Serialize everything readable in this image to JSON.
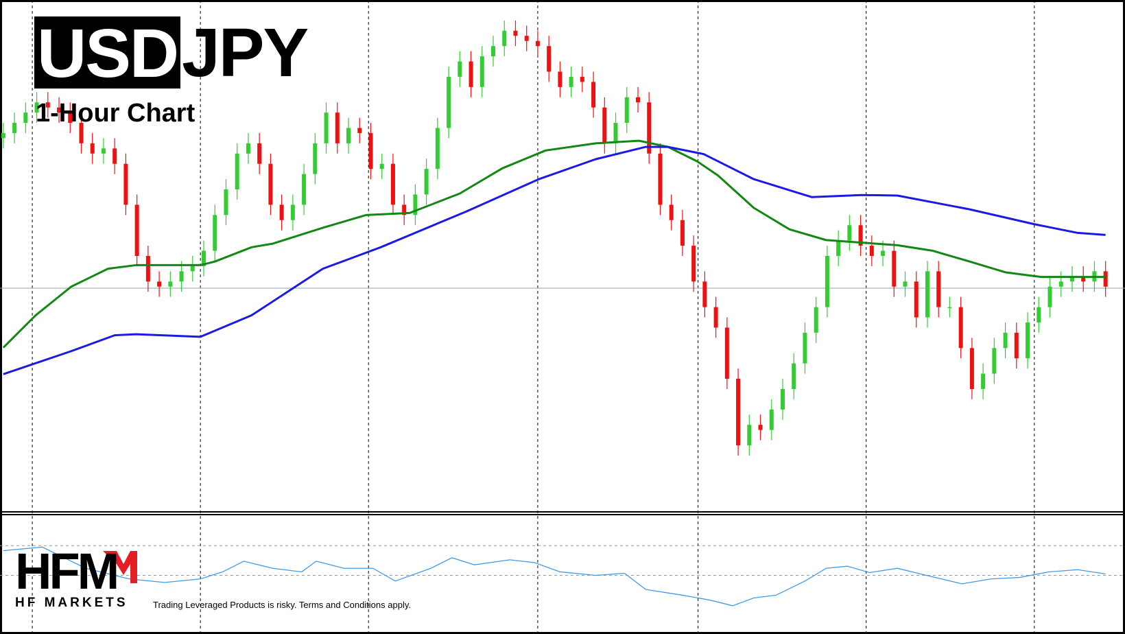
{
  "header": {
    "symbol_highlight": "USD",
    "symbol_rest": "JPY",
    "subtitle": "1-Hour Chart"
  },
  "logo": {
    "mark": "HFM",
    "name": "HF MARKETS"
  },
  "disclaimer": "Trading Leveraged Products is risky. Terms and Conditions apply.",
  "chart_data": {
    "type": "candlestick",
    "xlim": [
      -0.3,
      100.5
    ],
    "ylim": [
      0,
      100
    ],
    "up_color": "#33cc33",
    "down_color": "#ee1111",
    "xticks": [
      2.6,
      17.7,
      32.8,
      48,
      62.4,
      77.5,
      92.6
    ],
    "grid": true,
    "hline": 43.7,
    "open": [
      73,
      74,
      76,
      78,
      80,
      79,
      78,
      76,
      72,
      70,
      71,
      68,
      60,
      50,
      45,
      44,
      45,
      47,
      48,
      51,
      58,
      63,
      70,
      72,
      68,
      60,
      57,
      60,
      66,
      72,
      78,
      72,
      75,
      74,
      67,
      68,
      60,
      58,
      62,
      67,
      75,
      85,
      88,
      83,
      89,
      91,
      94,
      93,
      92,
      91,
      86,
      83,
      85,
      84,
      79,
      72,
      76,
      81,
      80,
      70,
      60,
      57,
      52,
      45,
      40,
      36,
      26,
      13,
      17,
      16,
      20,
      24,
      29,
      35,
      40,
      50,
      53,
      56,
      52,
      50,
      51,
      44,
      45,
      38,
      47,
      40,
      40,
      32,
      24,
      27,
      32,
      35,
      30,
      37,
      40,
      44,
      45,
      46,
      45,
      47
    ],
    "high": [
      76,
      78,
      80,
      82,
      82,
      81,
      80,
      78,
      74,
      73,
      73,
      70,
      62,
      52,
      47,
      47,
      49,
      50,
      53,
      60,
      65,
      72,
      74,
      74,
      70,
      62,
      62,
      68,
      74,
      80,
      80,
      77,
      77,
      76,
      70,
      70,
      62,
      64,
      69,
      77,
      87,
      90,
      90,
      91,
      93,
      96,
      96,
      95,
      94,
      93,
      88,
      87,
      87,
      86,
      81,
      78,
      83,
      83,
      82,
      72,
      62,
      59,
      54,
      47,
      42,
      38,
      28,
      19,
      19,
      22,
      26,
      31,
      37,
      42,
      52,
      55,
      58,
      58,
      54,
      53,
      53,
      47,
      47,
      49,
      49,
      42,
      42,
      34,
      29,
      34,
      37,
      37,
      39,
      42,
      46,
      47,
      48,
      48,
      49,
      49
    ],
    "low": [
      71,
      72,
      74,
      76,
      77,
      76,
      74,
      70,
      68,
      68,
      66,
      58,
      48,
      43,
      42,
      42,
      43,
      45,
      46,
      49,
      56,
      61,
      68,
      66,
      58,
      55,
      55,
      58,
      64,
      70,
      70,
      70,
      72,
      65,
      65,
      58,
      56,
      56,
      60,
      65,
      73,
      83,
      81,
      81,
      87,
      89,
      91,
      90,
      89,
      84,
      81,
      81,
      82,
      77,
      70,
      70,
      74,
      78,
      68,
      58,
      55,
      50,
      43,
      38,
      34,
      24,
      11,
      11,
      14,
      14,
      18,
      22,
      27,
      33,
      38,
      48,
      51,
      50,
      48,
      48,
      42,
      42,
      36,
      36,
      38,
      38,
      30,
      22,
      22,
      25,
      30,
      28,
      28,
      35,
      38,
      42,
      43,
      43,
      43,
      42
    ],
    "close": [
      74,
      76,
      78,
      80,
      79,
      78,
      76,
      72,
      70,
      71,
      68,
      60,
      50,
      45,
      44,
      45,
      47,
      48,
      51,
      58,
      63,
      70,
      72,
      68,
      60,
      57,
      60,
      66,
      72,
      78,
      72,
      75,
      74,
      67,
      68,
      60,
      58,
      62,
      67,
      75,
      85,
      88,
      83,
      89,
      91,
      94,
      93,
      92,
      91,
      86,
      83,
      85,
      84,
      79,
      72,
      76,
      81,
      80,
      70,
      60,
      57,
      52,
      45,
      40,
      36,
      26,
      13,
      17,
      16,
      20,
      24,
      29,
      35,
      40,
      50,
      53,
      56,
      52,
      50,
      51,
      44,
      45,
      38,
      47,
      40,
      40,
      32,
      24,
      27,
      32,
      35,
      30,
      37,
      40,
      44,
      45,
      46,
      45,
      47,
      44
    ],
    "lines": [
      {
        "color": "#118811",
        "x": [
          0,
          2.9,
          6.1,
          9.4,
          11.9,
          17.7,
          19,
          22.3,
          24.2,
          28.7,
          32.6,
          36.5,
          41,
          44.8,
          48.7,
          53.2,
          57.1,
          59.7,
          62.3,
          64.2,
          67.4,
          70.6,
          73.9,
          75.8,
          80.3,
          83.5,
          86.8,
          90,
          93.2,
          99
        ],
        "values": [
          32.1,
          38.4,
          44,
          47.5,
          48.2,
          48.2,
          48.9,
          51.7,
          52.4,
          55.5,
          58,
          58.4,
          62.2,
          67.1,
          70.6,
          72,
          72.5,
          71.3,
          68.5,
          65.7,
          59.4,
          55.2,
          53.1,
          52.8,
          52.1,
          51,
          48.9,
          46.8,
          45.9,
          45.9
        ]
      },
      {
        "color": "#1a1ae6",
        "x": [
          0,
          6.1,
          10,
          11.9,
          17.7,
          22.3,
          28.7,
          33.9,
          41.6,
          48.1,
          53.2,
          57.7,
          59.7,
          62.9,
          67.4,
          72.6,
          77.1,
          80.3,
          86.8,
          92.6,
          96.5,
          99
        ],
        "values": [
          26.9,
          31.4,
          34.5,
          34.7,
          34.2,
          38.4,
          47.5,
          51.7,
          58.7,
          65,
          68.9,
          71.3,
          71.3,
          69.9,
          65,
          61.5,
          61.9,
          61.8,
          59.1,
          56.2,
          54.5,
          54.1
        ]
      }
    ],
    "indicator": {
      "ylim": [
        0,
        100
      ],
      "levels": [
        74.4,
        48.8
      ],
      "color": "#3d9be9",
      "x": [
        0,
        3.5,
        7.4,
        11.3,
        14.5,
        17.7,
        19.7,
        21.6,
        24.2,
        26.8,
        28.1,
        30.6,
        33.2,
        35.2,
        38.4,
        40.3,
        42.3,
        45.5,
        47.7,
        50,
        53.2,
        55.8,
        57.7,
        61,
        63.5,
        65.5,
        67.4,
        69.4,
        72,
        73.9,
        75.8,
        77.8,
        80.3,
        82.9,
        86.1,
        88.7,
        91.3,
        93.9,
        96.5,
        99
      ],
      "values": [
        70.1,
        73.2,
        54.9,
        45.7,
        42.7,
        45.7,
        51.8,
        61,
        54.9,
        51.8,
        61,
        54.9,
        54.9,
        43.9,
        54.9,
        64,
        57.9,
        62.2,
        59.8,
        51.8,
        48.8,
        50.6,
        36.6,
        31.7,
        27.4,
        22.6,
        29.3,
        31.7,
        43.9,
        54.9,
        56.7,
        51.2,
        54.9,
        48.8,
        41.5,
        45.7,
        47,
        51.8,
        53.7,
        50
      ]
    }
  }
}
